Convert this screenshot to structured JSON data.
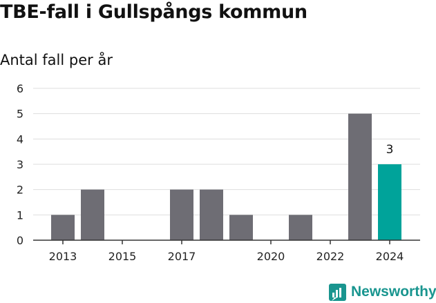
{
  "title": "TBE-fall i Gullspångs kommun",
  "subtitle": "Antal fall per år",
  "brand": {
    "name": "Newsworthy",
    "icon": "bar-chart-logo-icon"
  },
  "colors": {
    "bar": "#6e6d74",
    "highlight": "#00a39a",
    "grid": "#dddddd",
    "axis": "#333333",
    "brand": "#19958f"
  },
  "chart_data": {
    "type": "bar",
    "categories": [
      "2013",
      "2014",
      "2015",
      "2016",
      "2017",
      "2018",
      "2019",
      "2020",
      "2021",
      "2022",
      "2023",
      "2024"
    ],
    "values": [
      1,
      2,
      0,
      0,
      2,
      2,
      1,
      0,
      1,
      0,
      5,
      3
    ],
    "x_tick_labels": [
      "2013",
      "2015",
      "2017",
      "2020",
      "2022",
      "2024"
    ],
    "y_ticks": [
      0,
      1,
      2,
      3,
      4,
      5,
      6
    ],
    "ylim": [
      0,
      6
    ],
    "highlight": {
      "category": "2024",
      "label": "3"
    },
    "grid": true
  }
}
